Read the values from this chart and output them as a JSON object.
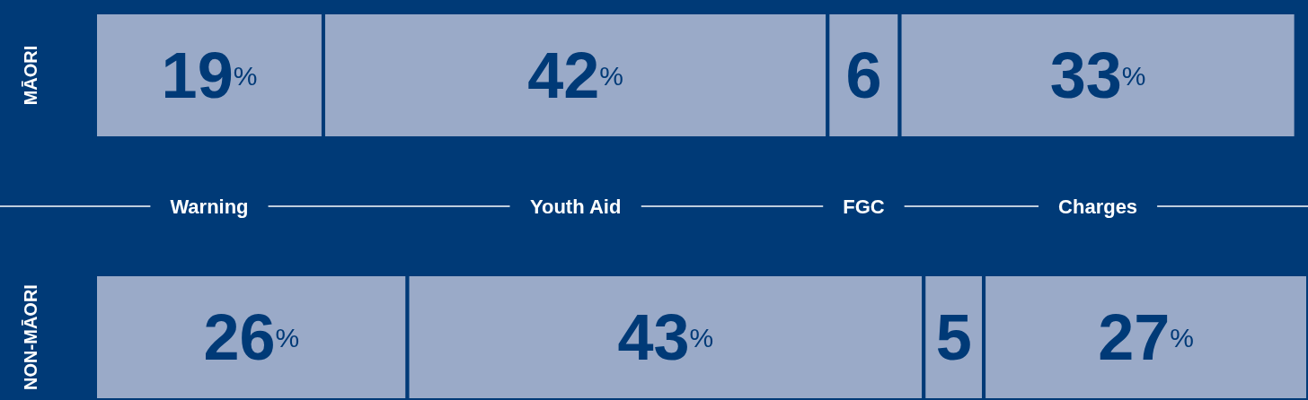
{
  "chart_data": {
    "type": "bar",
    "orientation": "horizontal",
    "stacked": true,
    "tick_labels": "y",
    "categories": [
      "MĀORI",
      "NON-MĀORI"
    ],
    "series": [
      {
        "name": "Warning",
        "color": "#9aaac8",
        "values": [
          19,
          26
        ],
        "value_labels": [
          "19%",
          "26%"
        ]
      },
      {
        "name": "Youth Aid",
        "color": "#9aaac8",
        "values": [
          42,
          43
        ],
        "value_labels": [
          "42%",
          "43%"
        ]
      },
      {
        "name": "FGC",
        "color": "#9aaac8",
        "values": [
          6,
          5
        ],
        "value_labels": [
          "6",
          "5"
        ]
      },
      {
        "name": "Charges",
        "color": "#9aaac8",
        "values": [
          33,
          27
        ],
        "value_labels": [
          "33%",
          "27%"
        ]
      }
    ]
  }
}
